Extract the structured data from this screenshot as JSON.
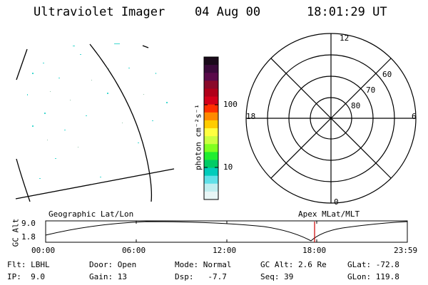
{
  "header": {
    "title": "Ultraviolet Imager",
    "date": "04 Aug 00",
    "time": "18:01:29 UT"
  },
  "colorbar": {
    "unit_label": "photon cm⁻²s⁻¹",
    "ticks": [
      "100",
      "10"
    ],
    "colors": [
      "#1a0a1a",
      "#3a0a3a",
      "#5a0a4a",
      "#8a0a2a",
      "#b0001a",
      "#d4001a",
      "#ff3000",
      "#ff8a00",
      "#ffcc00",
      "#ffff40",
      "#ccff40",
      "#80ff20",
      "#20ee30",
      "#00cc66",
      "#00ccbb",
      "#60e0e8",
      "#c0eef0",
      "#e8f6f6"
    ]
  },
  "polar": {
    "mlt_labels": [
      "12",
      "18",
      "6",
      "0"
    ],
    "lat_labels": [
      "60",
      "70",
      "80"
    ]
  },
  "timeline": {
    "left_title": "Geographic Lat/Lon",
    "right_title": "Apex MLat/MLT",
    "y_label": "GC Alt",
    "y_ticks": [
      "9.0",
      "1.8"
    ],
    "x_ticks": [
      "00:00",
      "06:00",
      "12:00",
      "18:00",
      "23:59"
    ],
    "current_time_color": "#cc0000"
  },
  "footer": {
    "flt": "Flt: LBHL",
    "ip": "IP:  9.0",
    "door": "Door: Open",
    "gain": "Gain: 13",
    "mode": "Mode: Normal",
    "dsp": "Dsp:   -7.7",
    "gcalt": "GC Alt: 2.6 Re",
    "seq": "Seq: 39",
    "glat": "GLat: -72.8",
    "glon": "GLon: 119.8"
  }
}
